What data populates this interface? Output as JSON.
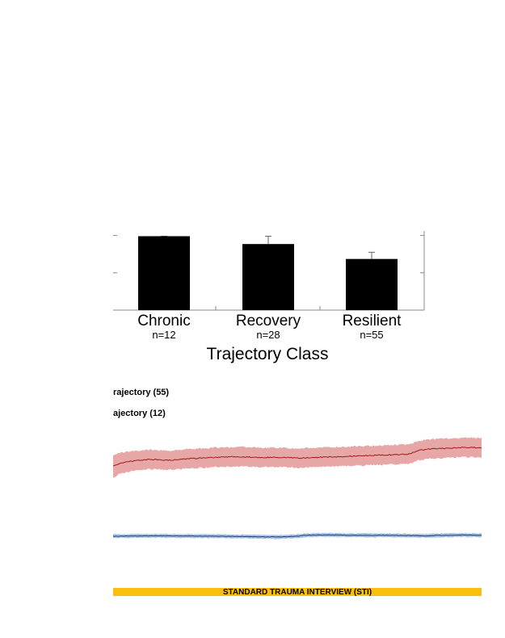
{
  "chart_data": [
    {
      "type": "bar",
      "categories": [
        "Chronic",
        "Recovery",
        "Resilient"
      ],
      "sublabels": [
        "n=12",
        "n=28",
        "n=55"
      ],
      "values": [
        1.98,
        1.77,
        1.37
      ],
      "error_upper": [
        1.98,
        1.98,
        1.55
      ],
      "xlabel": "Trajectory Class",
      "ylabel": "",
      "ylim": [
        0,
        2.12
      ],
      "bar_color": "#000000",
      "grid": false
    },
    {
      "type": "line",
      "series": [
        {
          "name": "rajectory (55)",
          "color": "#1f3a78",
          "band_color": "#a9c2e2"
        },
        {
          "name": "ajectory (12)",
          "color": "#a01818",
          "band_color": "#e8a7a7"
        }
      ],
      "ylim": [
        0,
        1
      ],
      "upper_series": {
        "x": [
          0,
          0.02,
          0.06,
          0.1,
          0.15,
          0.2,
          0.25,
          0.3,
          0.35,
          0.4,
          0.45,
          0.5,
          0.55,
          0.6,
          0.65,
          0.7,
          0.75,
          0.8,
          0.83,
          0.86,
          0.9,
          0.95,
          1.0
        ],
        "mean": [
          0.28,
          0.335,
          0.37,
          0.39,
          0.375,
          0.4,
          0.41,
          0.43,
          0.43,
          0.42,
          0.42,
          0.41,
          0.42,
          0.43,
          0.44,
          0.45,
          0.46,
          0.47,
          0.53,
          0.55,
          0.56,
          0.575,
          0.57
        ],
        "band_halfwidth": [
          0.18,
          0.16,
          0.15,
          0.15,
          0.15,
          0.15,
          0.15,
          0.15,
          0.15,
          0.15,
          0.15,
          0.15,
          0.15,
          0.15,
          0.15,
          0.15,
          0.15,
          0.15,
          0.15,
          0.15,
          0.15,
          0.15,
          0.15
        ]
      },
      "lower_series": {
        "x": [
          0,
          0.05,
          0.1,
          0.2,
          0.3,
          0.4,
          0.45,
          0.5,
          0.52,
          0.55,
          0.6,
          0.65,
          0.7,
          0.75,
          0.8,
          0.85,
          0.9,
          0.95,
          1.0
        ],
        "mean": [
          0.0,
          0.005,
          0.01,
          0.005,
          0.0,
          -0.01,
          -0.015,
          0.0,
          0.02,
          0.025,
          0.025,
          0.02,
          0.02,
          0.02,
          0.015,
          0.01,
          0.02,
          0.025,
          0.02
        ],
        "band_halfwidth": [
          0.04,
          0.04,
          0.04,
          0.04,
          0.04,
          0.04,
          0.04,
          0.04,
          0.04,
          0.04,
          0.04,
          0.04,
          0.04,
          0.04,
          0.04,
          0.04,
          0.04,
          0.04,
          0.04
        ]
      }
    }
  ],
  "legend": {
    "line1": "rajectory (55)",
    "line2": "ajectory (12)"
  },
  "banner": {
    "text": "STANDARD TRAUMA INTERVIEW (STI)",
    "color": "#fbbf0f"
  }
}
